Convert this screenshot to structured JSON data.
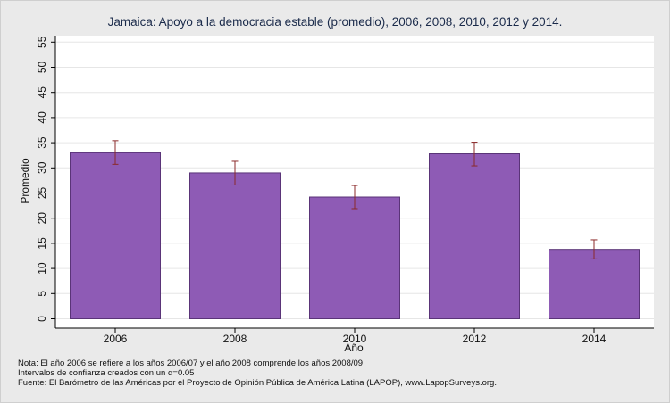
{
  "chart_data": {
    "type": "bar",
    "title": "Jamaica: Apoyo a la democracia estable (promedio), 2006, 2008, 2010, 2012 y 2014.",
    "xlabel": "Año",
    "ylabel": "Promedio",
    "categories": [
      "2006",
      "2008",
      "2010",
      "2012",
      "2014"
    ],
    "values": [
      33.0,
      29.0,
      24.2,
      32.8,
      13.8
    ],
    "ci_lower": [
      30.7,
      26.6,
      21.9,
      30.4,
      11.9
    ],
    "ci_upper": [
      35.4,
      31.3,
      26.5,
      35.1,
      15.7
    ],
    "yticks": [
      0,
      5,
      10,
      15,
      20,
      25,
      30,
      35,
      40,
      45,
      50,
      55
    ],
    "ylim": [
      0,
      55
    ],
    "grid": true,
    "colors": {
      "bar": "#8e5bb5",
      "bar_edge": "#5a3478",
      "error_bar": "#8b2a2a",
      "background": "#eaeaea",
      "plot": "#ffffff"
    }
  },
  "notes": {
    "line1": "Nota: El año 2006 se refiere a los años 2006/07 y el año 2008 comprende los años 2008/09",
    "line2": "Intervalos de confianza creados con un α=0.05",
    "line3": "Fuente: El Barómetro de las Américas por el Proyecto de Opinión Pública de América Latina (LAPOP), www.LapopSurveys.org."
  }
}
